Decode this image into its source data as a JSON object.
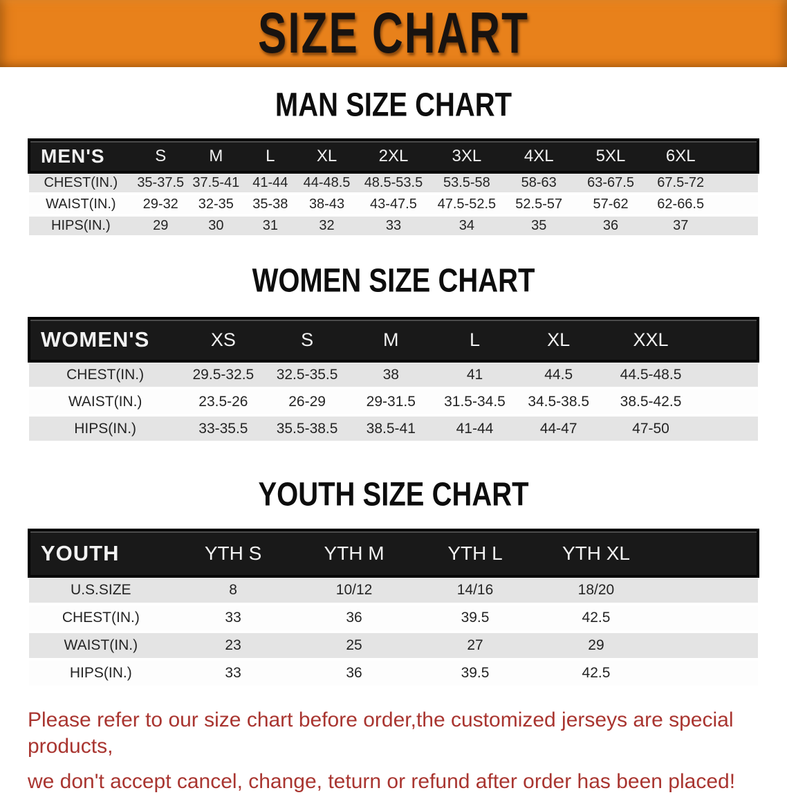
{
  "banner": {
    "title": "SIZE CHART"
  },
  "sections": [
    {
      "id": "men",
      "heading": "MAN SIZE CHART",
      "corner_label": "MEN'S",
      "columns": [
        "S",
        "M",
        "L",
        "XL",
        "2XL",
        "3XL",
        "4XL",
        "5XL",
        "6XL"
      ],
      "rows": [
        {
          "label": "CHEST(IN.)",
          "values": [
            "35-37.5",
            "37.5-41",
            "41-44",
            "44-48.5",
            "48.5-53.5",
            "53.5-58",
            "58-63",
            "63-67.5",
            "67.5-72"
          ]
        },
        {
          "label": "WAIST(IN.)",
          "values": [
            "29-32",
            "32-35",
            "35-38",
            "38-43",
            "43-47.5",
            "47.5-52.5",
            "52.5-57",
            "57-62",
            "62-66.5"
          ]
        },
        {
          "label": "HIPS(IN.)",
          "values": [
            "29",
            "30",
            "31",
            "32",
            "33",
            "34",
            "35",
            "36",
            "37"
          ]
        }
      ]
    },
    {
      "id": "women",
      "heading": "WOMEN SIZE CHART",
      "corner_label": "WOMEN'S",
      "columns": [
        "XS",
        "S",
        "M",
        "L",
        "XL",
        "XXL"
      ],
      "rows": [
        {
          "label": "CHEST(IN.)",
          "values": [
            "29.5-32.5",
            "32.5-35.5",
            "38",
            "41",
            "44.5",
            "44.5-48.5"
          ]
        },
        {
          "label": "WAIST(IN.)",
          "values": [
            "23.5-26",
            "26-29",
            "29-31.5",
            "31.5-34.5",
            "34.5-38.5",
            "38.5-42.5"
          ]
        },
        {
          "label": "HIPS(IN.)",
          "values": [
            "33-35.5",
            "35.5-38.5",
            "38.5-41",
            "41-44",
            "44-47",
            "47-50"
          ]
        }
      ]
    },
    {
      "id": "youth",
      "heading": "YOUTH SIZE CHART",
      "corner_label": "YOUTH",
      "columns": [
        "YTH S",
        "YTH M",
        "YTH L",
        "YTH XL"
      ],
      "rows": [
        {
          "label": "U.S.SIZE",
          "values": [
            "8",
            "10/12",
            "14/16",
            "18/20"
          ]
        },
        {
          "label": "CHEST(IN.)",
          "values": [
            "33",
            "36",
            "39.5",
            "42.5"
          ]
        },
        {
          "label": "WAIST(IN.)",
          "values": [
            "23",
            "25",
            "27",
            "29"
          ]
        },
        {
          "label": "HIPS(IN.)",
          "values": [
            "33",
            "36",
            "39.5",
            "42.5"
          ]
        }
      ]
    }
  ],
  "footer": {
    "line1": "Please refer to our size chart before order,the customized jerseys are special products,",
    "line2": "we don't accept cancel, change, teturn or refund after order has been placed!"
  },
  "colors": {
    "banner_bg": "#E8811B",
    "banner_text": "#181310",
    "table_header_bg": "#191919",
    "table_header_text": "#F2F2F2",
    "row_stripe_gray": "#E4E4E4",
    "row_white": "#FDFDFD",
    "body_text": "#242424",
    "notice_red": "#A93530"
  }
}
